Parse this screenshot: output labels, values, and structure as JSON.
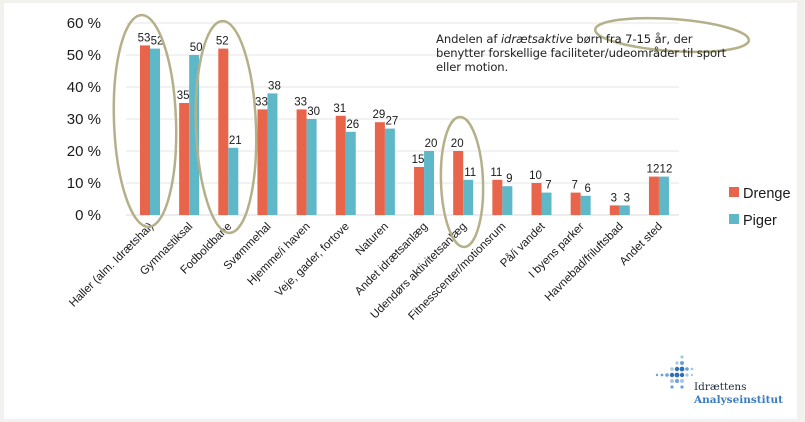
{
  "chart_data": {
    "type": "bar",
    "title": "Andelen af idrætsaktive børn fra 7-15 år, der benytter forskellige faciliteter/udeområder til sport eller motion.",
    "xlabel": "",
    "ylabel": "",
    "ylim": [
      0,
      60
    ],
    "yticks": [
      0,
      10,
      20,
      30,
      40,
      50,
      60
    ],
    "ytick_labels": [
      "0 %",
      "10 %",
      "20 %",
      "30 %",
      "40 %",
      "50 %",
      "60 %"
    ],
    "grid": true,
    "legend_position": "right",
    "categories": [
      "Haller (alm. Idrætshal)",
      "Gymnastiksal",
      "Fodboldbane",
      "Svømmehal",
      "Hjemme/i haven",
      "Veje, gader, fortove",
      "Naturen",
      "Andet idrætsanlæg",
      "Udendørs aktivitetsanlæg",
      "Fitnesscenter/motionsrum",
      "På/i vandet",
      "I byens parker",
      "Havnebad/friluftsbad",
      "Andet sted"
    ],
    "series": [
      {
        "name": "Drenge",
        "color": "#e8644a",
        "values": [
          53,
          35,
          52,
          33,
          33,
          31,
          29,
          15,
          20,
          11,
          10,
          7,
          3,
          12
        ]
      },
      {
        "name": "Piger",
        "color": "#5fb8c8",
        "values": [
          52,
          50,
          21,
          38,
          30,
          26,
          27,
          20,
          11,
          9,
          7,
          6,
          3,
          12
        ]
      }
    ],
    "annotations": {
      "highlight_color": "#b5b08a",
      "highlighted_categories": [
        "Haller (alm. Idrætshal)",
        "Fodboldbane",
        "Udendørs aktivitetsanlæg"
      ],
      "highlighted_text": "børn fra 7-15 år"
    }
  },
  "subtitle": {
    "part1": "Andelen af ",
    "italic": "idrætsaktive",
    "part2": " børn fra 7-15 år, der benytter forskellige faciliteter/udeområder til sport eller motion."
  },
  "logo": {
    "line1": "Idrættens",
    "line2": "Analyseinstitut",
    "dot_colors": [
      "#2f6fb3",
      "#6fa0d4",
      "#a9c6e6"
    ]
  }
}
